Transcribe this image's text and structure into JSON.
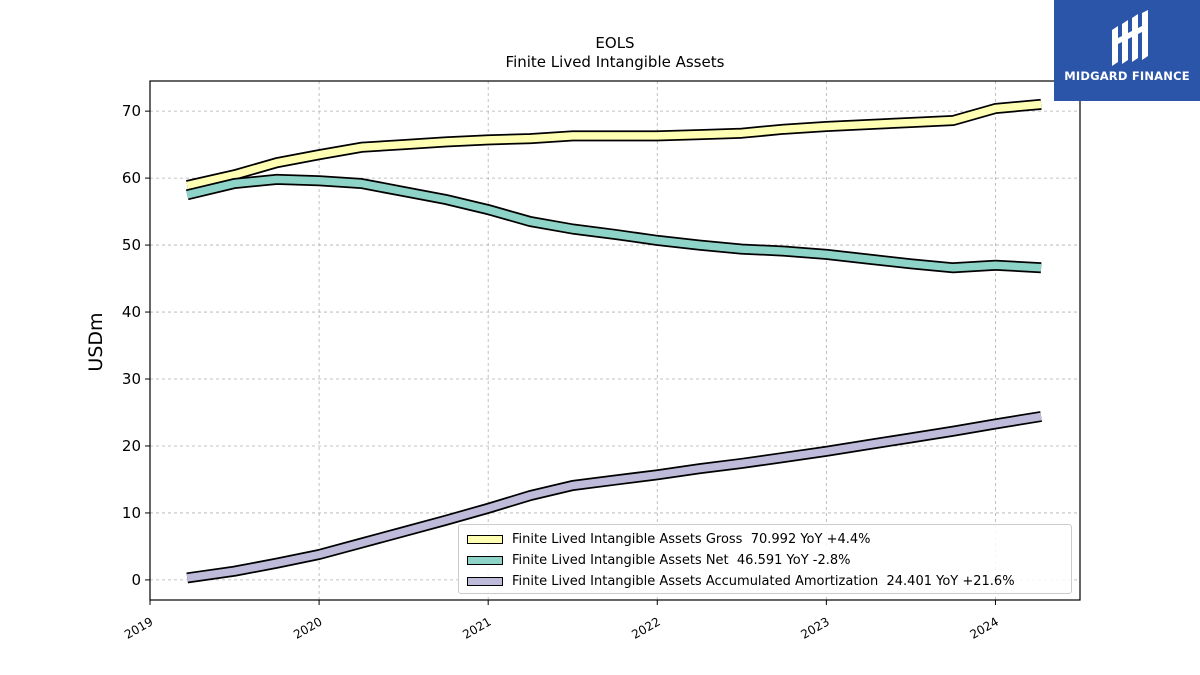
{
  "logo": {
    "brand_text": "MIDGARD FINANCE",
    "icon": "midgard-m-icon",
    "color": "#2b55a8"
  },
  "chart_data": {
    "type": "line",
    "title": "EOLS",
    "subtitle": "Finite Lived Intangible Assets",
    "xlabel": "",
    "ylabel": "USDm",
    "ylim": [
      -3,
      74.5
    ],
    "yticks": [
      0,
      10,
      20,
      30,
      40,
      50,
      60,
      70
    ],
    "xlim": [
      2019.0,
      2024.5
    ],
    "xticks": [
      "2019",
      "2020",
      "2021",
      "2022",
      "2023",
      "2024"
    ],
    "grid": true,
    "legend_position": "bottom-right",
    "x": [
      2019.22,
      2019.5,
      2019.75,
      2020.0,
      2020.25,
      2020.5,
      2020.75,
      2021.0,
      2021.25,
      2021.5,
      2021.75,
      2022.0,
      2022.25,
      2022.5,
      2022.75,
      2023.0,
      2023.25,
      2023.5,
      2023.75,
      2024.0,
      2024.27
    ],
    "series": [
      {
        "name": "Finite Lived Intangible Assets Gross",
        "legend_label": "Finite Lived Intangible Assets Gross  70.992 YoY +4.4%",
        "color": "#ffffb3",
        "values": [
          58.9,
          60.5,
          62.3,
          63.5,
          64.6,
          65.0,
          65.4,
          65.7,
          65.9,
          66.3,
          66.3,
          66.3,
          66.5,
          66.7,
          67.3,
          67.7,
          68.0,
          68.3,
          68.6,
          70.4,
          71.0
        ]
      },
      {
        "name": "Finite Lived Intangible Assets Net",
        "legend_label": "Finite Lived Intangible Assets Net  46.591 YoY -2.8%",
        "color": "#8dd3c7",
        "values": [
          57.5,
          59.2,
          59.8,
          59.6,
          59.2,
          58.0,
          56.8,
          55.3,
          53.5,
          52.4,
          51.6,
          50.7,
          50.0,
          49.4,
          49.1,
          48.6,
          47.9,
          47.2,
          46.6,
          47.0,
          46.6
        ]
      },
      {
        "name": "Finite Lived Intangible Assets Accumulated Amortization",
        "legend_label": "Finite Lived Intangible Assets Accumulated Amortization  24.401 YoY +21.6%",
        "color": "#bebada",
        "values": [
          0.3,
          1.3,
          2.5,
          3.8,
          5.5,
          7.2,
          8.9,
          10.7,
          12.6,
          14.1,
          14.9,
          15.7,
          16.6,
          17.4,
          18.3,
          19.2,
          20.2,
          21.2,
          22.2,
          23.3,
          24.4
        ]
      }
    ]
  }
}
